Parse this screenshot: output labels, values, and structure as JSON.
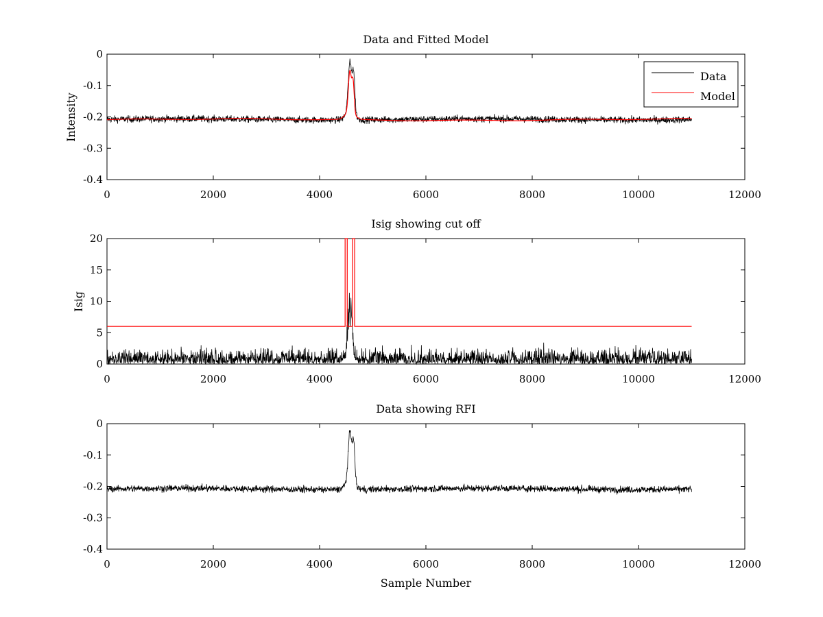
{
  "colors": {
    "data": "#000000",
    "model": "#ff0000",
    "background": "#ffffff",
    "axes": "#000000"
  },
  "chart_data": [
    {
      "id": "top",
      "type": "line",
      "title": "Data and Fitted Model",
      "xlabel": "",
      "ylabel": "Intensity",
      "xlim": [
        0,
        12000
      ],
      "ylim": [
        -0.4,
        0
      ],
      "xticks": [
        "0",
        "2000",
        "4000",
        "6000",
        "8000",
        "10000",
        "12000"
      ],
      "yticks": [
        "0",
        "-0.1",
        "-0.2",
        "-0.3",
        "-0.4"
      ],
      "legend": {
        "position": "top-right",
        "entries": [
          "Data",
          "Model"
        ]
      },
      "series": [
        {
          "name": "Data",
          "color": "#000000",
          "kind": "noisy",
          "x_range": [
            0,
            11000
          ],
          "baseline": -0.208,
          "noise_amplitude": 0.012,
          "peak_center": 4570,
          "peak_max": -0.03,
          "peak_secondary": {
            "center": 4640,
            "max": -0.04
          }
        },
        {
          "name": "Model",
          "color": "#ff0000",
          "kind": "smooth",
          "x_range": [
            0,
            11000
          ],
          "baseline": -0.209,
          "peak_center": 4570,
          "peak_max": -0.065,
          "peak_secondary": {
            "center": 4630,
            "max": -0.07
          }
        }
      ]
    },
    {
      "id": "middle",
      "type": "line",
      "title": "Isig showing cut off",
      "xlabel": "",
      "ylabel": "Isig",
      "xlim": [
        0,
        12000
      ],
      "ylim": [
        0,
        20
      ],
      "xticks": [
        "0",
        "2000",
        "4000",
        "6000",
        "8000",
        "10000",
        "12000"
      ],
      "yticks": [
        "20",
        "15",
        "10",
        "5",
        "0"
      ],
      "series": [
        {
          "name": "Isig",
          "color": "#000000",
          "kind": "abs-noise",
          "x_range": [
            0,
            11000
          ],
          "typical_max": 2.5,
          "peak_center": 4570,
          "peak_max": 11.2
        },
        {
          "name": "Cut off",
          "color": "#ff0000",
          "kind": "step",
          "x": [
            0,
            4480,
            4480,
            4520,
            4520,
            4620,
            4620,
            4660,
            4660,
            11000
          ],
          "y": [
            6,
            6,
            20,
            20,
            6,
            6,
            20,
            20,
            6,
            6
          ]
        }
      ]
    },
    {
      "id": "bottom",
      "type": "line",
      "title": "Data showing RFI",
      "xlabel": "Sample Number",
      "ylabel": "",
      "xlim": [
        0,
        12000
      ],
      "ylim": [
        -0.4,
        0
      ],
      "xticks": [
        "0",
        "2000",
        "4000",
        "6000",
        "8000",
        "10000",
        "12000"
      ],
      "yticks": [
        "0",
        "-0.1",
        "-0.2",
        "-0.3",
        "-0.4"
      ],
      "series": [
        {
          "name": "Data",
          "color": "#000000",
          "kind": "noisy",
          "x_range": [
            0,
            11000
          ],
          "baseline": -0.208,
          "noise_amplitude": 0.012,
          "peak_center": 4570,
          "peak_max": -0.03,
          "peak_secondary": {
            "center": 4640,
            "max": -0.04
          }
        }
      ]
    }
  ]
}
